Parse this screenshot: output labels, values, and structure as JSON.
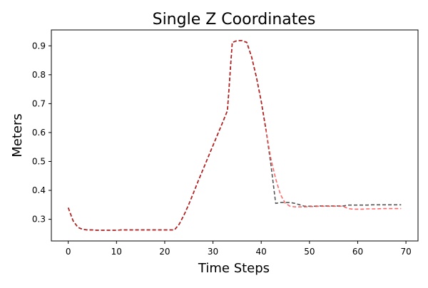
{
  "chart_data": {
    "type": "line",
    "title": "Single Z Coordinates",
    "xlabel": "Time Steps",
    "ylabel": "Meters",
    "xlim": [
      -3.5,
      72.5
    ],
    "ylim": [
      0.225,
      0.955
    ],
    "xticks": [
      0,
      10,
      20,
      30,
      40,
      50,
      60,
      70
    ],
    "yticks": [
      0.3,
      0.4,
      0.5,
      0.6,
      0.7,
      0.8,
      0.9
    ],
    "xtick_labels": [
      "0",
      "10",
      "20",
      "30",
      "40",
      "50",
      "60",
      "70"
    ],
    "ytick_labels": [
      "0.3",
      "0.4",
      "0.5",
      "0.6",
      "0.7",
      "0.8",
      "0.9"
    ],
    "grid": false,
    "series": [
      {
        "color": "#555555",
        "style": "dashed",
        "alpha": 1.0,
        "x": [
          0,
          1,
          2,
          3,
          4,
          5,
          6,
          7,
          8,
          9,
          10,
          11,
          12,
          13,
          14,
          15,
          16,
          17,
          18,
          19,
          20,
          21,
          22,
          23,
          24,
          25,
          26,
          27,
          28,
          29,
          30,
          31,
          32,
          33,
          34,
          35,
          36,
          37,
          38,
          39,
          40,
          41,
          42,
          43,
          44,
          45,
          46,
          47,
          48,
          49,
          50,
          51,
          52,
          53,
          54,
          55,
          56,
          57,
          58,
          59,
          60,
          61,
          62,
          63,
          64,
          65,
          66,
          67,
          68,
          69
        ],
        "values": [
          0.34,
          0.295,
          0.272,
          0.265,
          0.263,
          0.263,
          0.262,
          0.262,
          0.262,
          0.262,
          0.262,
          0.263,
          0.263,
          0.263,
          0.263,
          0.263,
          0.263,
          0.263,
          0.263,
          0.263,
          0.263,
          0.263,
          0.263,
          0.283,
          0.315,
          0.352,
          0.393,
          0.435,
          0.475,
          0.515,
          0.555,
          0.595,
          0.635,
          0.676,
          0.912,
          0.918,
          0.918,
          0.912,
          0.862,
          0.792,
          0.708,
          0.608,
          0.49,
          0.355,
          0.358,
          0.358,
          0.358,
          0.355,
          0.35,
          0.345,
          0.345,
          0.345,
          0.346,
          0.346,
          0.346,
          0.346,
          0.346,
          0.346,
          0.349,
          0.349,
          0.349,
          0.349,
          0.349,
          0.35,
          0.35,
          0.35,
          0.35,
          0.35,
          0.35,
          0.35
        ]
      },
      {
        "color": "#ff4d4d",
        "style": "dashed",
        "alpha": 0.85,
        "x": [
          0,
          1,
          2,
          3,
          4,
          5,
          6,
          7,
          8,
          9,
          10,
          11,
          12,
          13,
          14,
          15,
          16,
          17,
          18,
          19,
          20,
          21,
          22,
          23,
          24,
          25,
          26,
          27,
          28,
          29,
          30,
          31,
          32,
          33,
          34,
          35,
          36,
          37,
          38,
          39,
          40,
          41,
          42,
          43,
          44,
          45,
          46,
          47,
          48,
          49,
          50,
          51,
          52,
          53,
          54,
          55,
          56,
          57,
          58,
          59,
          60,
          61,
          62,
          63,
          64,
          65,
          66,
          67,
          68,
          69
        ],
        "values": [
          0.34,
          0.295,
          0.272,
          0.265,
          0.263,
          0.263,
          0.262,
          0.262,
          0.262,
          0.262,
          0.262,
          0.263,
          0.263,
          0.263,
          0.263,
          0.263,
          0.263,
          0.263,
          0.263,
          0.263,
          0.263,
          0.263,
          0.263,
          0.283,
          0.315,
          0.352,
          0.393,
          0.435,
          0.475,
          0.515,
          0.555,
          0.595,
          0.635,
          0.676,
          0.912,
          0.918,
          0.918,
          0.912,
          0.862,
          0.792,
          0.708,
          0.608,
          0.51,
          0.44,
          0.385,
          0.355,
          0.345,
          0.343,
          0.343,
          0.343,
          0.344,
          0.344,
          0.345,
          0.345,
          0.345,
          0.345,
          0.345,
          0.345,
          0.337,
          0.335,
          0.335,
          0.335,
          0.336,
          0.336,
          0.336,
          0.337,
          0.337,
          0.337,
          0.337,
          0.337
        ]
      },
      {
        "color": "#b22222",
        "style": "dashed",
        "alpha": 1.0,
        "x": [
          0,
          1,
          2,
          3,
          4,
          5,
          6,
          7,
          8,
          9,
          10,
          11,
          12,
          13,
          14,
          15,
          16,
          17,
          18,
          19,
          20,
          21,
          22,
          23,
          24,
          25,
          26,
          27,
          28,
          29,
          30,
          31,
          32,
          33,
          34,
          35,
          36,
          37,
          38,
          39,
          40,
          41
        ],
        "values": [
          0.34,
          0.295,
          0.272,
          0.265,
          0.263,
          0.263,
          0.262,
          0.262,
          0.262,
          0.262,
          0.262,
          0.263,
          0.263,
          0.263,
          0.263,
          0.263,
          0.263,
          0.263,
          0.263,
          0.263,
          0.263,
          0.263,
          0.263,
          0.283,
          0.315,
          0.352,
          0.393,
          0.435,
          0.475,
          0.515,
          0.555,
          0.595,
          0.635,
          0.676,
          0.912,
          0.918,
          0.918,
          0.912,
          0.862,
          0.792,
          0.708,
          0.608
        ]
      }
    ]
  }
}
